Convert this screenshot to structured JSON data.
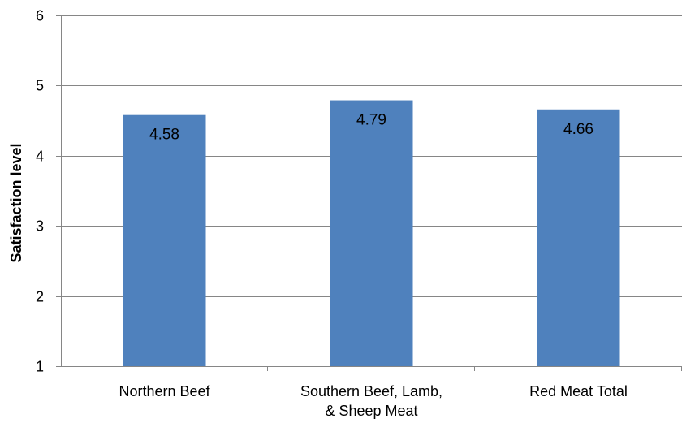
{
  "chart_data": {
    "type": "bar",
    "categories": [
      [
        "Northern Beef"
      ],
      [
        "Southern Beef, Lamb,",
        "& Sheep Meat"
      ],
      [
        "Red Meat Total"
      ]
    ],
    "values": [
      4.58,
      4.79,
      4.66
    ],
    "value_labels": [
      "4.58",
      "4.79",
      "4.66"
    ],
    "ylabel": "Satisfaction level",
    "ylim": [
      1,
      6
    ],
    "yticks": [
      1,
      2,
      3,
      4,
      5,
      6
    ],
    "grid": true,
    "legend": "none",
    "colors": {
      "bar": "#4f81bd",
      "grid": "#868686",
      "axis": "#868686"
    }
  }
}
